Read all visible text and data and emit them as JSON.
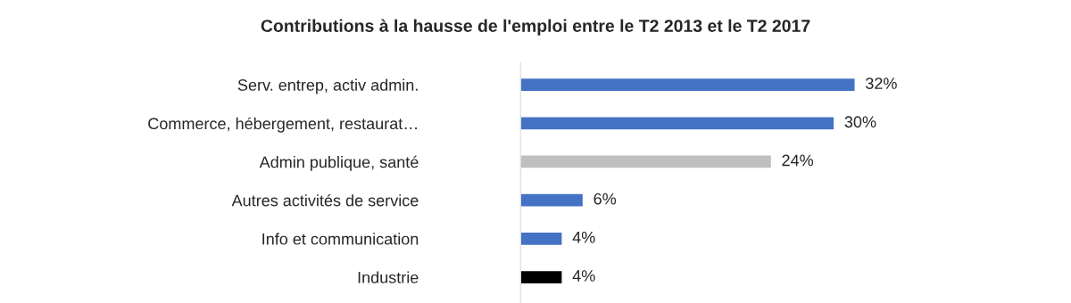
{
  "chart_data": {
    "type": "bar",
    "orientation": "horizontal",
    "title": "Contributions à la hausse de l'emploi entre le T2 2013 et le T2 2017",
    "categories": [
      "Serv. entrep, activ admin.",
      "Commerce, hébergement, restaurat…",
      "Admin publique, santé",
      "Autres activités de service",
      "Info et communication",
      "Industrie"
    ],
    "values": [
      32,
      30,
      24,
      6,
      4,
      4
    ],
    "colors": [
      "#4472c4",
      "#4472c4",
      "#bfbfbf",
      "#4472c4",
      "#4472c4",
      "#000000"
    ],
    "value_labels": [
      "32%",
      "30%",
      "24%",
      "6%",
      "4%",
      "4%"
    ]
  }
}
